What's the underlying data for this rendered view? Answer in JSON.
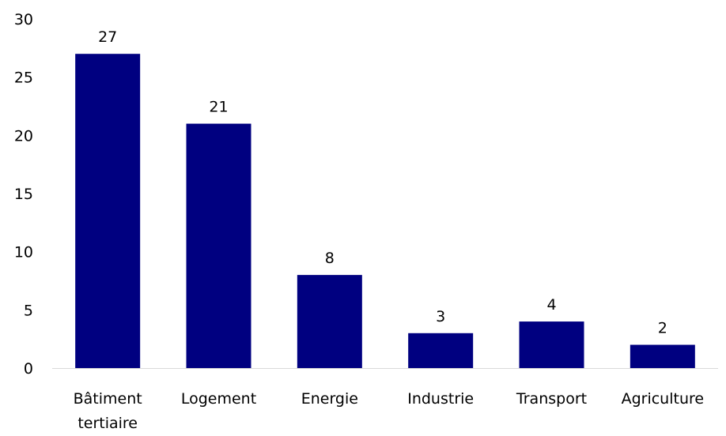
{
  "chart_data": {
    "type": "bar",
    "categories": [
      [
        "Bâtiment",
        "tertiaire"
      ],
      [
        "Logement"
      ],
      [
        "Energie"
      ],
      [
        "Industrie"
      ],
      [
        "Transport"
      ],
      [
        "Agriculture"
      ]
    ],
    "values": [
      27,
      21,
      8,
      3,
      4,
      2
    ],
    "data_labels": [
      "27",
      "21",
      "8",
      "3",
      "4",
      "2"
    ],
    "ylim": [
      0,
      30
    ],
    "yticks": [
      0,
      5,
      10,
      15,
      20,
      25,
      30
    ],
    "grid": false,
    "title": "",
    "xlabel": "",
    "ylabel": "",
    "bar_color": "#000080",
    "axis_color": "#d9d9d9"
  }
}
